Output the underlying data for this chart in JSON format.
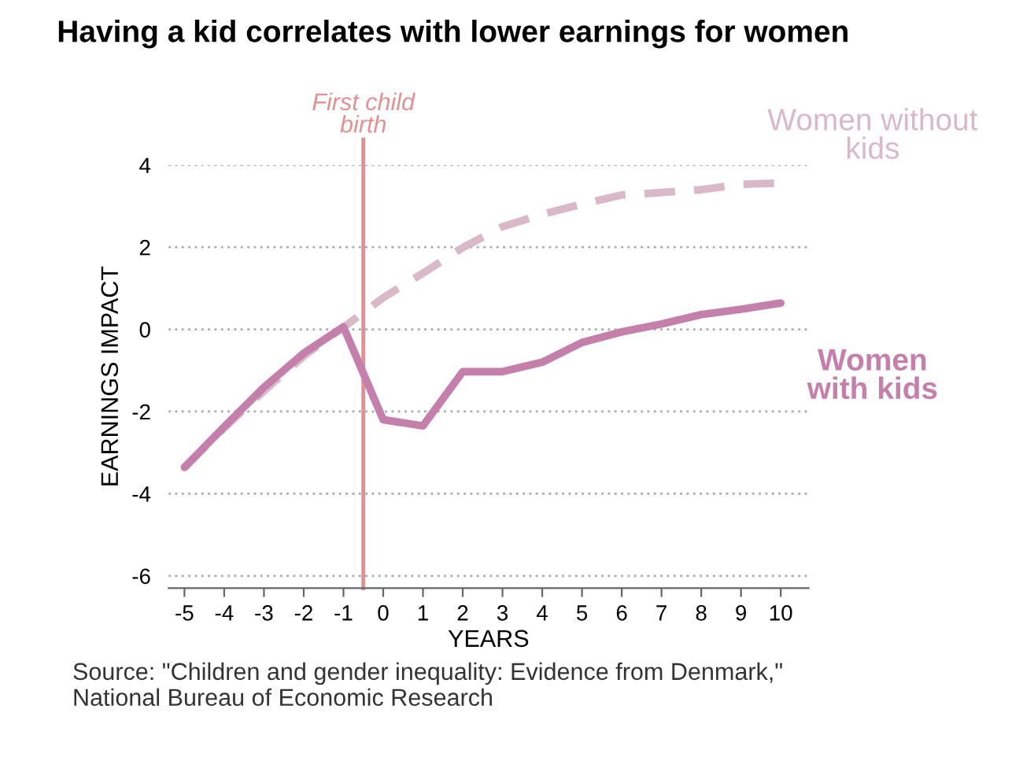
{
  "chart_data": {
    "type": "line",
    "title": "Having a kid correlates with lower earnings for women",
    "xlabel": "YEARS",
    "ylabel": "EARNINGS IMPACT",
    "x": [
      -5,
      -4,
      -3,
      -2,
      -1,
      0,
      1,
      2,
      3,
      4,
      5,
      6,
      7,
      8,
      9,
      10
    ],
    "series": [
      {
        "name": "Women without kids",
        "color": "#d9b8c8",
        "line_style": "dashed",
        "values": [
          -3.36,
          -2.4,
          -1.5,
          -0.65,
          0.05,
          0.77,
          1.37,
          1.99,
          2.5,
          2.8,
          3.05,
          3.27,
          3.33,
          3.4,
          3.53,
          3.56
        ]
      },
      {
        "name": "Women with kids",
        "color": "#c47fab",
        "line_style": "solid",
        "values": [
          -3.36,
          -2.37,
          -1.41,
          -0.58,
          0.06,
          -2.2,
          -2.35,
          -1.03,
          -1.03,
          -0.8,
          -0.32,
          -0.06,
          0.13,
          0.36,
          0.49,
          0.64
        ]
      }
    ],
    "xlim": [
      -5.4,
      10.7
    ],
    "ylim": [
      -6.3,
      4
    ],
    "xticks": [
      -5,
      -4,
      -3,
      -2,
      -1,
      0,
      1,
      2,
      3,
      4,
      5,
      6,
      7,
      8,
      9,
      10
    ],
    "yticks": [
      -6,
      -4,
      -2,
      0,
      2,
      4
    ],
    "ref_lines": [
      {
        "axis": "x",
        "value": -0.5,
        "label": "First child birth",
        "color": "#e39090"
      }
    ],
    "grid": "y",
    "legend": false,
    "marker": "none",
    "annotations": [
      "Source: \"Children and gender inequality: Evidence from Denmark,\"\nNational Bureau of Economic Research"
    ]
  }
}
